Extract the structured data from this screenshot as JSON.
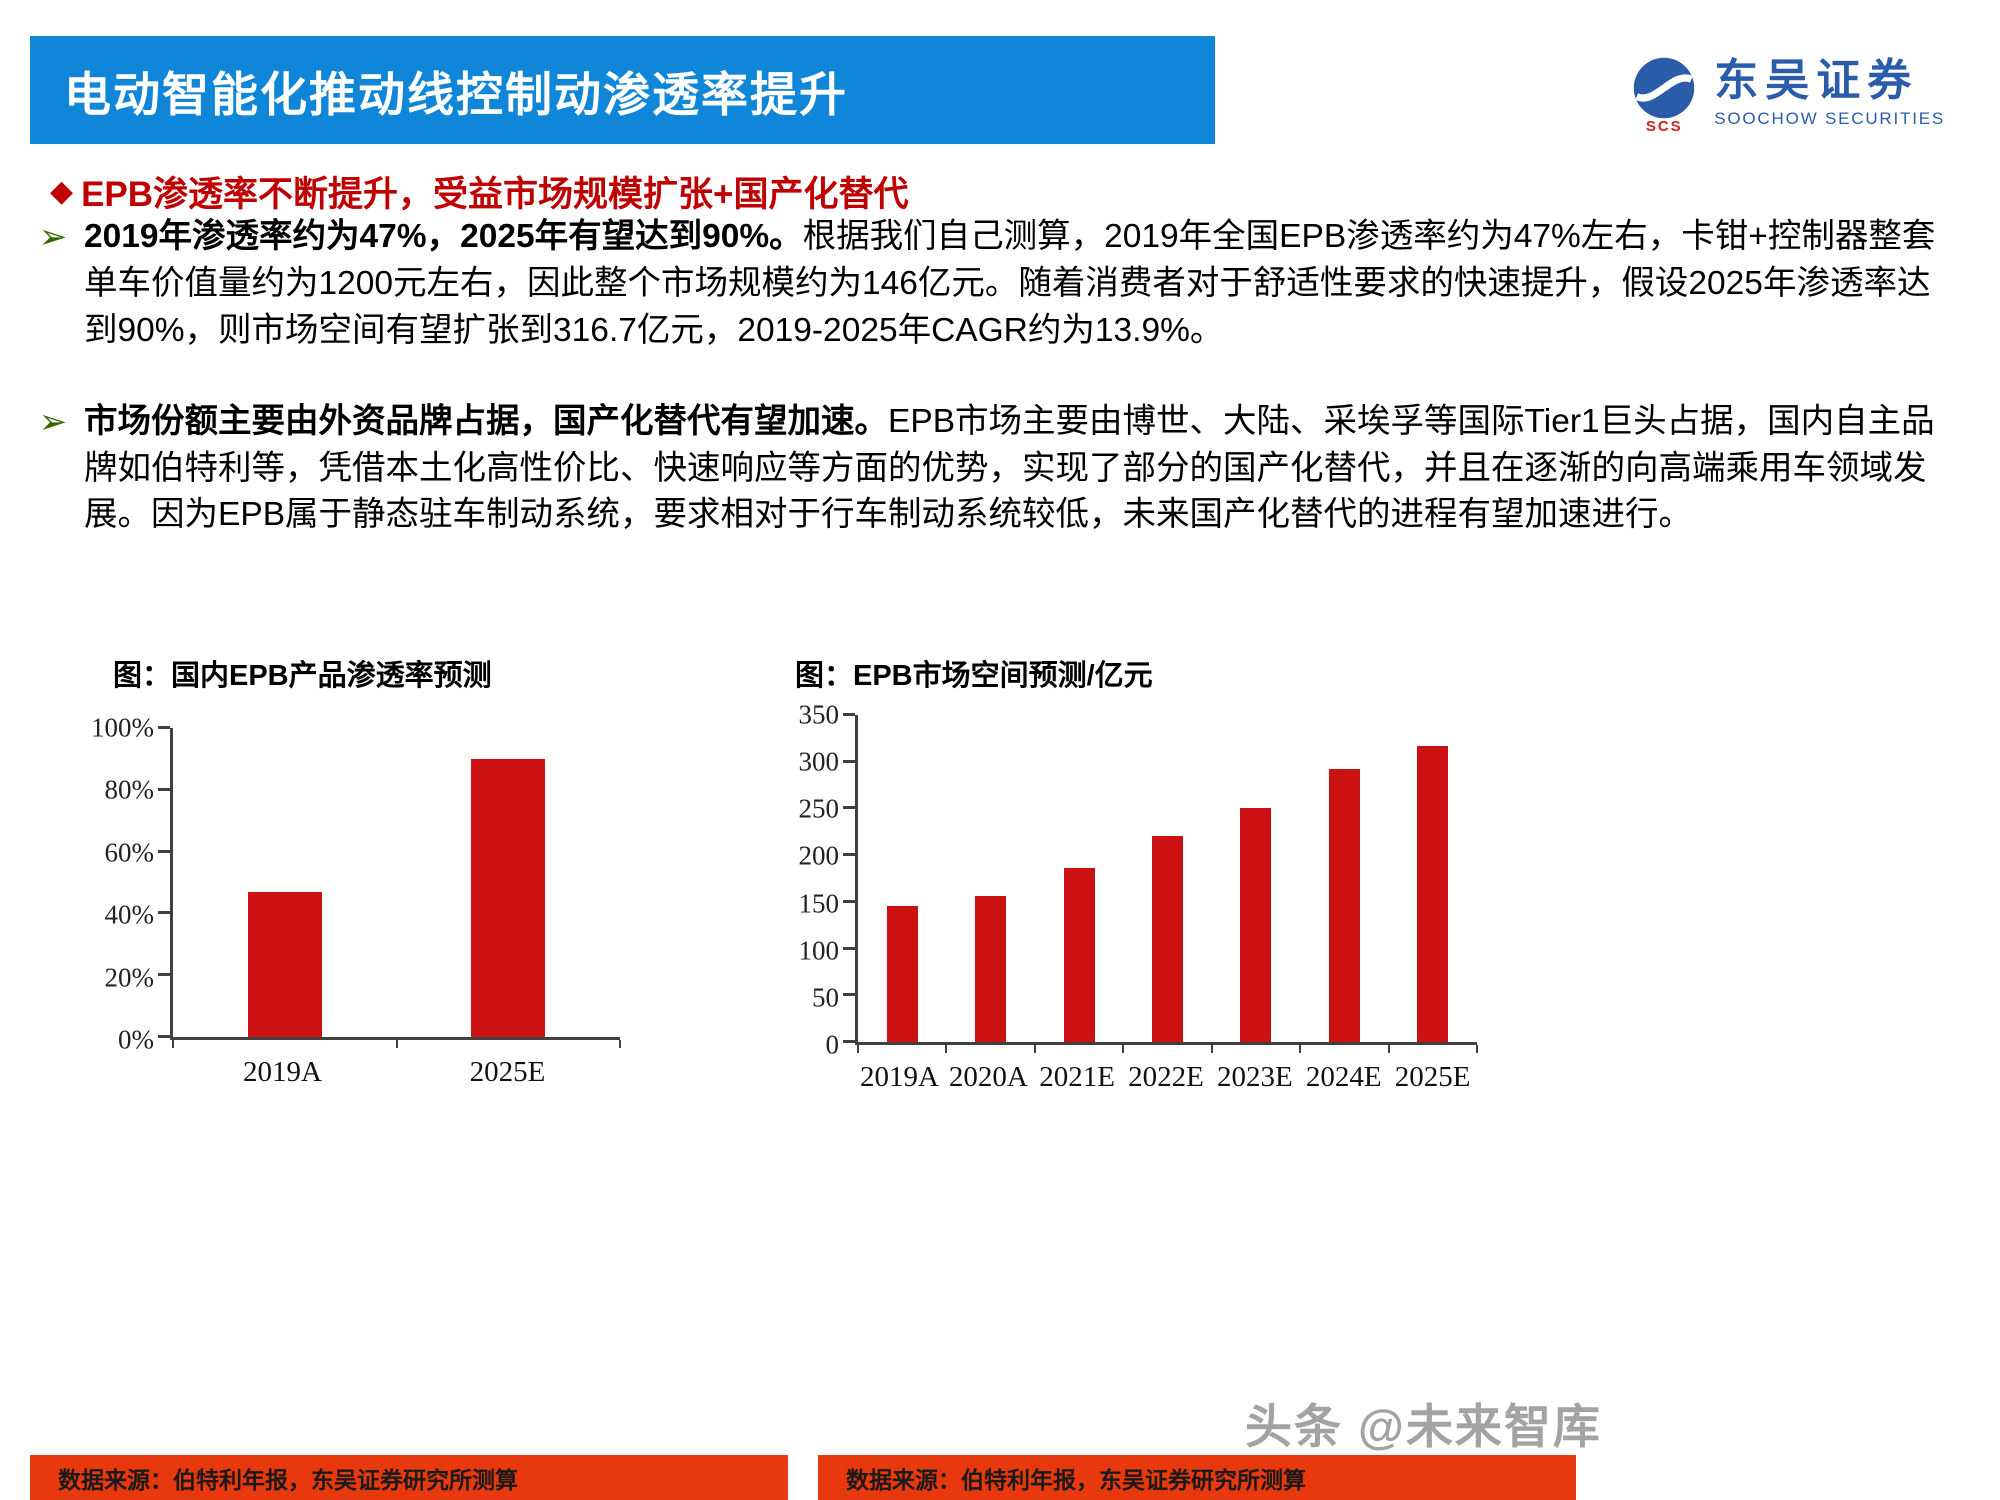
{
  "header": {
    "title": "电动智能化推动线控制动渗透率提升",
    "logo": {
      "name": "东吴证券",
      "subtitle": "SOOCHOW SECURITIES",
      "badge": "SCS",
      "icon": "soochow-circle-logo"
    }
  },
  "section": {
    "heading": "EPB渗透率不断提升，受益市场规模扩张+国产化替代"
  },
  "bullets": [
    {
      "lead": "2019年渗透率约为47%，2025年有望达到90%。",
      "text": "根据我们自己测算，2019年全国EPB渗透率约为47%左右，卡钳+控制器整套单车价值量约为1200元左右，因此整个市场规模约为146亿元。随着消费者对于舒适性要求的快速提升，假设2025年渗透率达到90%，则市场空间有望扩张到316.7亿元，2019-2025年CAGR约为13.9%。"
    },
    {
      "lead": "市场份额主要由外资品牌占据，国产化替代有望加速。",
      "text": "EPB市场主要由博世、大陆、采埃孚等国际Tier1巨头占据，国内自主品牌如伯特利等，凭借本土化高性价比、快速响应等方面的优势，实现了部分的国产化替代，并且在逐渐的向高端乘用车领域发展。因为EPB属于静态驻车制动系统，要求相对于行车制动系统较低，未来国产化替代的进程有望加速进行。"
    }
  ],
  "chart_data": [
    {
      "type": "bar",
      "title": "图：国内EPB产品渗透率预测",
      "categories": [
        "2019A",
        "2025E"
      ],
      "values": [
        47,
        90
      ],
      "unit": "%",
      "ylim": [
        0,
        100
      ],
      "yticks": [
        {
          "v": 0,
          "label": "0%"
        },
        {
          "v": 20,
          "label": "20%"
        },
        {
          "v": 40,
          "label": "40%"
        },
        {
          "v": 60,
          "label": "60%"
        },
        {
          "v": 80,
          "label": "80%"
        },
        {
          "v": 100,
          "label": "100%"
        }
      ],
      "bar_color": "#cc1212",
      "grid": false,
      "legend": false
    },
    {
      "type": "bar",
      "title": "图：EPB市场空间预测/亿元",
      "categories": [
        "2019A",
        "2020A",
        "2021E",
        "2022E",
        "2023E",
        "2024E",
        "2025E"
      ],
      "values": [
        146,
        156,
        186,
        220,
        251,
        292,
        317
      ],
      "unit": "亿元",
      "ylim": [
        0,
        350
      ],
      "yticks": [
        {
          "v": 0,
          "label": "0"
        },
        {
          "v": 50,
          "label": "50"
        },
        {
          "v": 100,
          "label": "100"
        },
        {
          "v": 150,
          "label": "150"
        },
        {
          "v": 200,
          "label": "200"
        },
        {
          "v": 250,
          "label": "250"
        },
        {
          "v": 300,
          "label": "300"
        },
        {
          "v": 350,
          "label": "350"
        }
      ],
      "bar_color": "#cc1212",
      "grid": false,
      "legend": false
    }
  ],
  "footers": {
    "left": "数据来源：伯特利年报，东吴证券研究所测算",
    "right": "数据来源：伯特利年报，东吴证券研究所测算"
  },
  "watermark": "头条 @未来智库",
  "colors": {
    "header_blue": "#1086d8",
    "accent_red": "#c00000",
    "bar_red": "#cc1212",
    "footer_red": "#e8380d",
    "logo_blue": "#2a5caa"
  }
}
